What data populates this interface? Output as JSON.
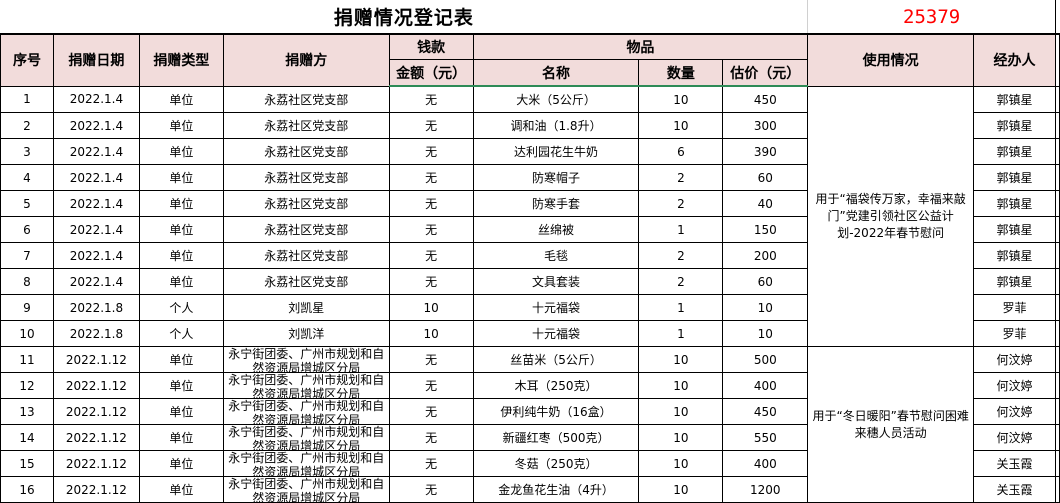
{
  "title": "捐赠情况登记表",
  "serial": "25379",
  "colors": {
    "header_bg": "#f2dcdb",
    "serial": "#ff0000",
    "grid": "#000000"
  },
  "headers": {
    "seq": "序号",
    "date": "捐赠日期",
    "type": "捐赠类型",
    "donor": "捐赠方",
    "money": "钱款",
    "amount": "金额（元）",
    "goods": "物品",
    "name": "名称",
    "qty": "数量",
    "est": "估价（元）",
    "usage": "使用情况",
    "handler": "经办人"
  },
  "usage": [
    "用于“福袋传万家，幸福来敲门”党建引领社区公益计划-2022年春节慰问",
    "用于“冬日暖阳”春节慰问困难来穗人员活动"
  ],
  "rows": [
    {
      "seq": "1",
      "date": "2022.1.4",
      "type": "单位",
      "donor": "永荔社区党支部",
      "amount": "无",
      "name": "大米（5公斤）",
      "qty": "10",
      "est": "450",
      "handler": "郭镇星"
    },
    {
      "seq": "2",
      "date": "2022.1.4",
      "type": "单位",
      "donor": "永荔社区党支部",
      "amount": "无",
      "name": "调和油（1.8升）",
      "qty": "10",
      "est": "300",
      "handler": "郭镇星"
    },
    {
      "seq": "3",
      "date": "2022.1.4",
      "type": "单位",
      "donor": "永荔社区党支部",
      "amount": "无",
      "name": "达利园花生牛奶",
      "qty": "6",
      "est": "390",
      "handler": "郭镇星"
    },
    {
      "seq": "4",
      "date": "2022.1.4",
      "type": "单位",
      "donor": "永荔社区党支部",
      "amount": "无",
      "name": "防寒帽子",
      "qty": "2",
      "est": "60",
      "handler": "郭镇星"
    },
    {
      "seq": "5",
      "date": "2022.1.4",
      "type": "单位",
      "donor": "永荔社区党支部",
      "amount": "无",
      "name": "防寒手套",
      "qty": "2",
      "est": "40",
      "handler": "郭镇星"
    },
    {
      "seq": "6",
      "date": "2022.1.4",
      "type": "单位",
      "donor": "永荔社区党支部",
      "amount": "无",
      "name": "丝绵被",
      "qty": "1",
      "est": "150",
      "handler": "郭镇星"
    },
    {
      "seq": "7",
      "date": "2022.1.4",
      "type": "单位",
      "donor": "永荔社区党支部",
      "amount": "无",
      "name": "毛毯",
      "qty": "2",
      "est": "200",
      "handler": "郭镇星"
    },
    {
      "seq": "8",
      "date": "2022.1.4",
      "type": "单位",
      "donor": "永荔社区党支部",
      "amount": "无",
      "name": "文具套装",
      "qty": "2",
      "est": "60",
      "handler": "郭镇星"
    },
    {
      "seq": "9",
      "date": "2022.1.8",
      "type": "个人",
      "donor": "刘凯星",
      "amount": "10",
      "name": "十元福袋",
      "qty": "1",
      "est": "10",
      "handler": "罗菲"
    },
    {
      "seq": "10",
      "date": "2022.1.8",
      "type": "个人",
      "donor": "刘凯洋",
      "amount": "10",
      "name": "十元福袋",
      "qty": "1",
      "est": "10",
      "handler": "罗菲"
    },
    {
      "seq": "11",
      "date": "2022.1.12",
      "type": "单位",
      "donor": "永宁街团委、广州市规划和自然资源局增城区分局",
      "amount": "无",
      "name": "丝苗米（5公斤）",
      "qty": "10",
      "est": "500",
      "handler": "何汶婷"
    },
    {
      "seq": "12",
      "date": "2022.1.12",
      "type": "单位",
      "donor": "永宁街团委、广州市规划和自然资源局增城区分局",
      "amount": "无",
      "name": "木耳（250克）",
      "qty": "10",
      "est": "400",
      "handler": "何汶婷"
    },
    {
      "seq": "13",
      "date": "2022.1.12",
      "type": "单位",
      "donor": "永宁街团委、广州市规划和自然资源局增城区分局",
      "amount": "无",
      "name": "伊利纯牛奶（16盒）",
      "qty": "10",
      "est": "450",
      "handler": "何汶婷"
    },
    {
      "seq": "14",
      "date": "2022.1.12",
      "type": "单位",
      "donor": "永宁街团委、广州市规划和自然资源局增城区分局",
      "amount": "无",
      "name": "新疆红枣（500克）",
      "qty": "10",
      "est": "550",
      "handler": "何汶婷"
    },
    {
      "seq": "15",
      "date": "2022.1.12",
      "type": "单位",
      "donor": "永宁街团委、广州市规划和自然资源局增城区分局",
      "amount": "无",
      "name": "冬菇（250克）",
      "qty": "10",
      "est": "400",
      "handler": "关玉霞"
    },
    {
      "seq": "16",
      "date": "2022.1.12",
      "type": "单位",
      "donor": "永宁街团委、广州市规划和自然资源局增城区分局",
      "amount": "无",
      "name": "金龙鱼花生油（4升）",
      "qty": "10",
      "est": "1200",
      "handler": "关玉霞"
    }
  ]
}
